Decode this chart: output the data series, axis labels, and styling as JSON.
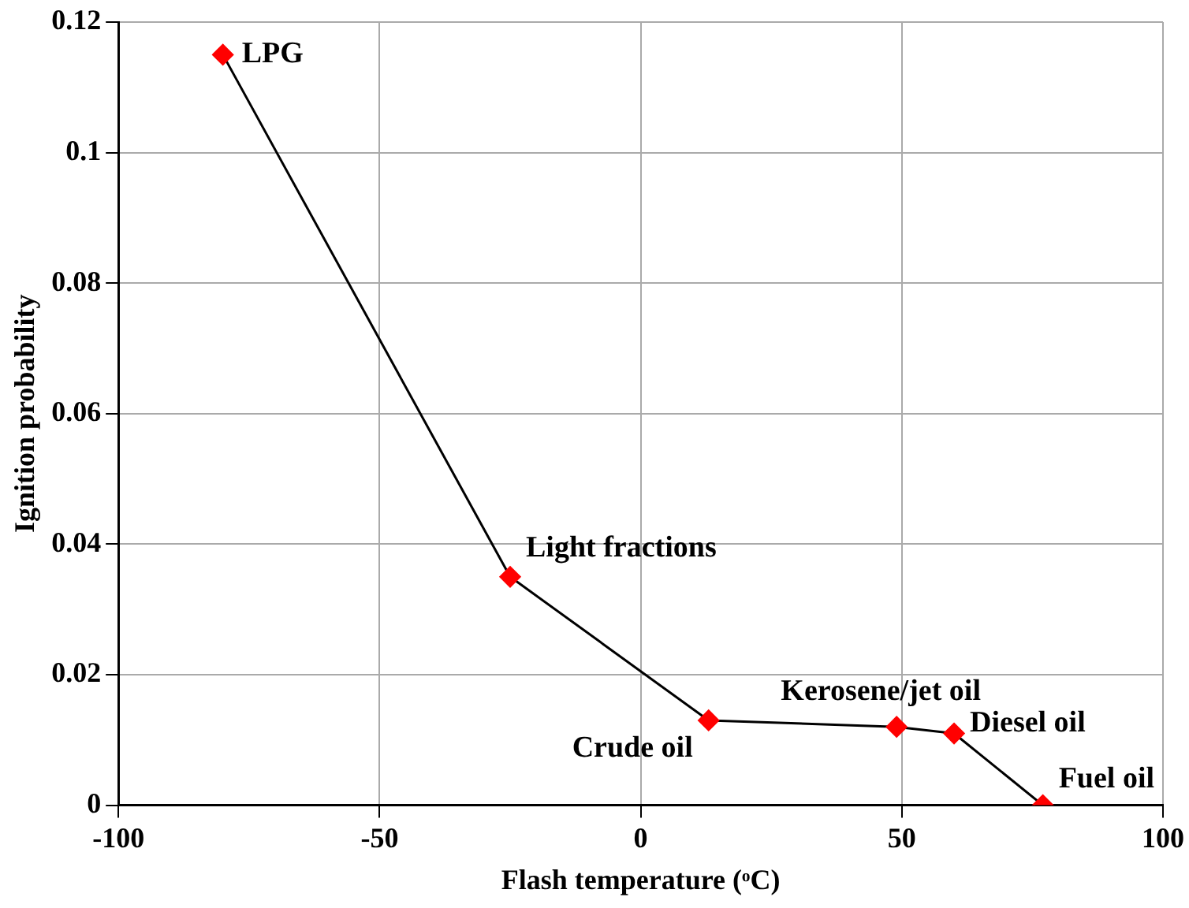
{
  "chart_data": {
    "type": "line",
    "xlabel": "Flash temperature (ᵒC)",
    "ylabel": "Ignition probability",
    "x": [
      -80,
      -25,
      13,
      49,
      60,
      77
    ],
    "series": [
      {
        "color": "#ff0000",
        "values": [
          0.115,
          0.035,
          0.013,
          0.012,
          0.011,
          0
        ]
      }
    ],
    "xlim": [
      -100,
      100
    ],
    "xticks": [
      -100,
      -50,
      0,
      50,
      100
    ],
    "ylim": [
      0,
      0.12
    ],
    "yticks": [
      0,
      0.02,
      0.04,
      0.06,
      0.08,
      0.1,
      0.12
    ],
    "grid": true,
    "legend": false,
    "marker": "diamond",
    "line_style": "solid",
    "annotations": [
      {
        "text": "LPG",
        "x": -80,
        "y": 0.115
      },
      {
        "text": "Light fractions",
        "x": -25,
        "y": 0.035
      },
      {
        "text": "Crude oil",
        "x": 13,
        "y": 0.013
      },
      {
        "text": "Kerosene/jet oil",
        "x": 49,
        "y": 0.012
      },
      {
        "text": "Diesel oil",
        "x": 60,
        "y": 0.011
      },
      {
        "text": "Fuel oil",
        "x": 77,
        "y": 0
      }
    ]
  }
}
